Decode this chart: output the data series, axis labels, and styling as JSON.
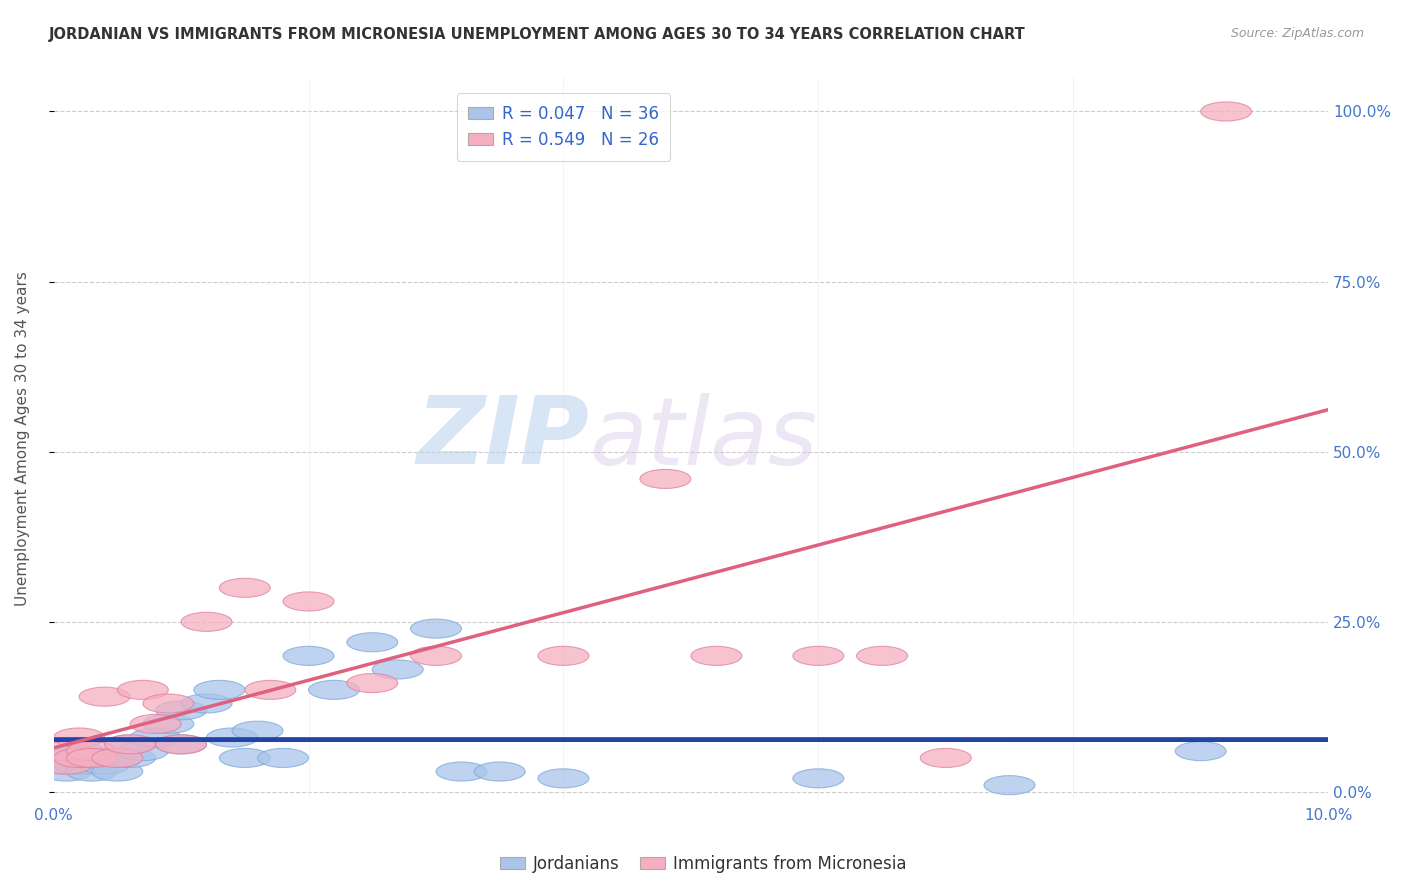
{
  "title": "JORDANIAN VS IMMIGRANTS FROM MICRONESIA UNEMPLOYMENT AMONG AGES 30 TO 34 YEARS CORRELATION CHART",
  "source": "Source: ZipAtlas.com",
  "ylabel": "Unemployment Among Ages 30 to 34 years",
  "xlim": [
    0.0,
    0.1
  ],
  "ylim": [
    -0.01,
    1.05
  ],
  "jordanians": {
    "label": "Jordanians",
    "color": "#aac4ea",
    "edge_color": "#7aaad8",
    "R": 0.047,
    "N": 36,
    "line_color": "#2244aa",
    "x": [
      0.001,
      0.001,
      0.001,
      0.002,
      0.002,
      0.002,
      0.003,
      0.003,
      0.004,
      0.004,
      0.005,
      0.005,
      0.006,
      0.006,
      0.007,
      0.008,
      0.009,
      0.01,
      0.01,
      0.012,
      0.013,
      0.014,
      0.015,
      0.016,
      0.018,
      0.02,
      0.022,
      0.025,
      0.027,
      0.03,
      0.032,
      0.035,
      0.04,
      0.06,
      0.075,
      0.09
    ],
    "y": [
      0.04,
      0.05,
      0.03,
      0.05,
      0.04,
      0.06,
      0.04,
      0.03,
      0.05,
      0.04,
      0.05,
      0.03,
      0.07,
      0.05,
      0.06,
      0.08,
      0.1,
      0.12,
      0.07,
      0.13,
      0.15,
      0.08,
      0.05,
      0.09,
      0.05,
      0.2,
      0.15,
      0.22,
      0.18,
      0.24,
      0.03,
      0.03,
      0.02,
      0.02,
      0.01,
      0.06
    ]
  },
  "micronesia": {
    "label": "Immigrants from Micronesia",
    "color": "#f5afc0",
    "edge_color": "#e080a0",
    "R": 0.549,
    "N": 26,
    "line_color": "#e06080",
    "x": [
      0.001,
      0.001,
      0.002,
      0.002,
      0.003,
      0.003,
      0.004,
      0.005,
      0.006,
      0.007,
      0.008,
      0.009,
      0.01,
      0.012,
      0.015,
      0.017,
      0.02,
      0.025,
      0.03,
      0.04,
      0.048,
      0.052,
      0.06,
      0.065,
      0.07,
      0.092
    ],
    "y": [
      0.04,
      0.06,
      0.05,
      0.08,
      0.06,
      0.05,
      0.14,
      0.05,
      0.07,
      0.15,
      0.1,
      0.13,
      0.07,
      0.25,
      0.3,
      0.15,
      0.28,
      0.16,
      0.2,
      0.2,
      0.46,
      0.2,
      0.2,
      0.2,
      0.05,
      1.0
    ]
  },
  "ytick_labels_right": [
    "0.0%",
    "25.0%",
    "50.0%",
    "75.0%",
    "100.0%"
  ],
  "yticks": [
    0.0,
    0.25,
    0.5,
    0.75,
    1.0
  ],
  "xtick_labels": [
    "0.0%",
    "10.0%"
  ],
  "xticks": [
    0.0,
    0.1
  ],
  "watermark_zip": "ZIP",
  "watermark_atlas": "atlas",
  "background_color": "#ffffff",
  "grid_color": "#cccccc"
}
